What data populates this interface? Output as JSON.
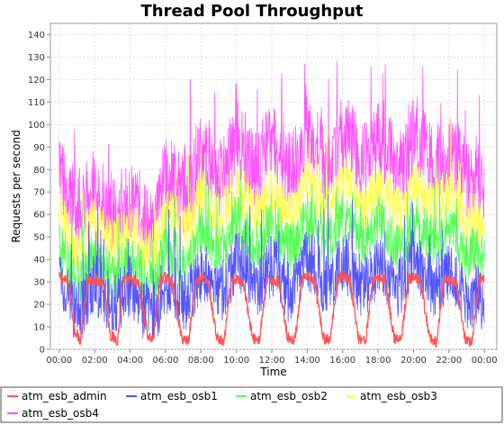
{
  "chart_data": {
    "type": "line",
    "title": "Thread Pool Throughput",
    "xlabel": "Time",
    "ylabel": "Requests per second",
    "ylim": [
      0,
      145
    ],
    "y_ticks": [
      0,
      10,
      20,
      30,
      40,
      50,
      60,
      70,
      80,
      90,
      100,
      110,
      120,
      130,
      140
    ],
    "x_ticks": [
      "00:00",
      "02:00",
      "04:00",
      "06:00",
      "08:00",
      "10:00",
      "12:00",
      "14:00",
      "16:00",
      "18:00",
      "20:00",
      "22:00",
      "00:00"
    ],
    "xlim_hours": [
      -0.5,
      24.7
    ],
    "grid": true,
    "legend_position": "bottom",
    "background_color": "#ffffff",
    "series": [
      {
        "name": "atm_esb_admin",
        "color": "#ff5555",
        "description": "cyclic plateau ~28-33, dips to ~3-10 between cycles",
        "x_hours": [
          0.0,
          0.5,
          0.9,
          1.2,
          1.6,
          2.0,
          2.5,
          2.9,
          3.3,
          3.6,
          4.0,
          4.5,
          5.0,
          5.3,
          5.7,
          6.0,
          6.4,
          6.9,
          7.3,
          7.7,
          8.0,
          8.4,
          8.9,
          9.3,
          9.7,
          10.0,
          10.4,
          10.9,
          11.3,
          11.7,
          12.0,
          12.4,
          12.9,
          13.3,
          13.7,
          14.0,
          14.4,
          14.9,
          15.3,
          15.7,
          16.0,
          16.4,
          16.9,
          17.3,
          17.7,
          18.0,
          18.4,
          18.9,
          19.3,
          19.7,
          20.0,
          20.4,
          20.9,
          21.3,
          21.7,
          22.0,
          22.4,
          22.9,
          23.3,
          23.7,
          24.0
        ],
        "y_values": [
          32,
          30,
          8,
          4,
          30,
          31,
          30,
          6,
          4,
          30,
          31,
          29,
          6,
          4,
          31,
          32,
          30,
          5,
          4,
          30,
          32,
          30,
          5,
          3,
          30,
          31,
          30,
          5,
          4,
          30,
          31,
          30,
          5,
          4,
          31,
          32,
          31,
          5,
          4,
          31,
          33,
          31,
          5,
          4,
          31,
          32,
          31,
          5,
          4,
          31,
          32,
          30,
          5,
          3,
          30,
          31,
          30,
          5,
          3,
          31,
          32
        ]
      },
      {
        "name": "atm_esb_osb1",
        "color": "#5555ff",
        "description": "noisy, mostly 10-40 with spikes to ~60-90 during business hours",
        "x_hours": [
          0.0,
          0.5,
          1.0,
          1.5,
          2.0,
          2.5,
          3.0,
          3.5,
          4.0,
          4.5,
          5.0,
          5.5,
          6.0,
          6.5,
          7.0,
          7.5,
          8.0,
          8.5,
          9.0,
          9.5,
          10.0,
          10.5,
          11.0,
          11.5,
          12.0,
          12.5,
          13.0,
          13.5,
          14.0,
          14.5,
          15.0,
          15.5,
          16.0,
          16.5,
          17.0,
          17.5,
          18.0,
          18.5,
          19.0,
          19.5,
          20.0,
          20.5,
          21.0,
          21.5,
          22.0,
          22.5,
          23.0,
          23.5,
          24.0
        ],
        "y_values": [
          35,
          22,
          15,
          20,
          30,
          25,
          18,
          22,
          28,
          20,
          15,
          18,
          30,
          28,
          20,
          25,
          35,
          30,
          25,
          28,
          40,
          35,
          28,
          30,
          38,
          32,
          25,
          30,
          40,
          35,
          28,
          32,
          40,
          36,
          28,
          30,
          38,
          34,
          26,
          30,
          42,
          36,
          28,
          30,
          35,
          30,
          22,
          25,
          20
        ]
      },
      {
        "name": "atm_esb_osb2",
        "color": "#55ff55",
        "description": "noisy, mostly 30-60 with peaks ~75",
        "x_hours": [
          0.0,
          0.5,
          1.0,
          1.5,
          2.0,
          2.5,
          3.0,
          3.5,
          4.0,
          4.5,
          5.0,
          5.5,
          6.0,
          6.5,
          7.0,
          7.5,
          8.0,
          8.5,
          9.0,
          9.5,
          10.0,
          10.5,
          11.0,
          11.5,
          12.0,
          12.5,
          13.0,
          13.5,
          14.0,
          14.5,
          15.0,
          15.5,
          16.0,
          16.5,
          17.0,
          17.5,
          18.0,
          18.5,
          19.0,
          19.5,
          20.0,
          20.5,
          21.0,
          21.5,
          22.0,
          22.5,
          23.0,
          23.5,
          24.0
        ],
        "y_values": [
          45,
          38,
          30,
          35,
          42,
          36,
          30,
          35,
          40,
          35,
          28,
          32,
          45,
          42,
          35,
          40,
          55,
          50,
          42,
          48,
          58,
          52,
          45,
          50,
          56,
          50,
          44,
          48,
          58,
          54,
          46,
          50,
          58,
          55,
          46,
          50,
          57,
          52,
          44,
          48,
          58,
          54,
          46,
          50,
          55,
          48,
          40,
          44,
          40
        ]
      },
      {
        "name": "atm_esb_osb3",
        "color": "#ffff55",
        "description": "noisy, mostly 45-75 with peaks ~90",
        "x_hours": [
          0.0,
          0.5,
          1.0,
          1.5,
          2.0,
          2.5,
          3.0,
          3.5,
          4.0,
          4.5,
          5.0,
          5.5,
          6.0,
          6.5,
          7.0,
          7.5,
          8.0,
          8.5,
          9.0,
          9.5,
          10.0,
          10.5,
          11.0,
          11.5,
          12.0,
          12.5,
          13.0,
          13.5,
          14.0,
          14.5,
          15.0,
          15.5,
          16.0,
          16.5,
          17.0,
          17.5,
          18.0,
          18.5,
          19.0,
          19.5,
          20.0,
          20.5,
          21.0,
          21.5,
          22.0,
          22.5,
          23.0,
          23.5,
          24.0
        ],
        "y_values": [
          60,
          52,
          45,
          50,
          58,
          52,
          45,
          50,
          55,
          50,
          42,
          46,
          60,
          58,
          52,
          56,
          70,
          66,
          58,
          64,
          74,
          68,
          60,
          66,
          72,
          66,
          58,
          64,
          74,
          70,
          62,
          66,
          74,
          70,
          62,
          66,
          72,
          68,
          60,
          64,
          74,
          70,
          62,
          66,
          70,
          64,
          56,
          60,
          55
        ]
      },
      {
        "name": "atm_esb_osb4",
        "color": "#ff55ff",
        "description": "noisy, mostly 60-100 with peaks up to ~140",
        "x_hours": [
          0.0,
          0.5,
          1.0,
          1.5,
          2.0,
          2.5,
          3.0,
          3.5,
          4.0,
          4.5,
          5.0,
          5.5,
          6.0,
          6.5,
          7.0,
          7.5,
          8.0,
          8.5,
          9.0,
          9.5,
          10.0,
          10.5,
          11.0,
          11.5,
          12.0,
          12.5,
          13.0,
          13.5,
          14.0,
          14.5,
          15.0,
          15.5,
          16.0,
          16.5,
          17.0,
          17.5,
          18.0,
          18.5,
          19.0,
          19.5,
          20.0,
          20.5,
          21.0,
          21.5,
          22.0,
          22.5,
          23.0,
          23.5,
          24.0
        ],
        "y_values": [
          78,
          70,
          62,
          65,
          72,
          68,
          60,
          64,
          68,
          64,
          56,
          60,
          78,
          74,
          68,
          72,
          88,
          84,
          76,
          82,
          94,
          88,
          80,
          86,
          92,
          86,
          78,
          84,
          95,
          90,
          82,
          86,
          95,
          92,
          82,
          86,
          94,
          90,
          80,
          84,
          96,
          92,
          82,
          86,
          90,
          84,
          74,
          78,
          70
        ]
      }
    ]
  }
}
